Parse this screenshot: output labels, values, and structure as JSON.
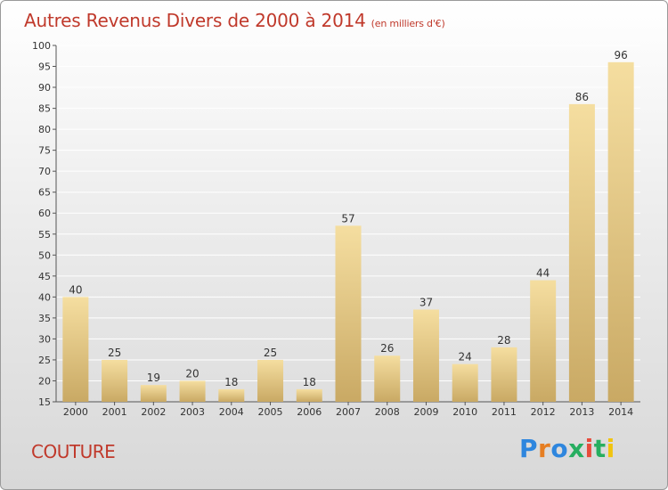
{
  "header": {
    "title": "Autres Revenus Divers de 2000 à 2014",
    "unit": "(en milliers d'€)"
  },
  "footer": {
    "commune": "COUTURE",
    "logo_letters": [
      "P",
      "r",
      "o",
      "x",
      "i",
      "t",
      "i"
    ],
    "logo_colors": [
      "#2e86de",
      "#e67e22",
      "#2e86de",
      "#27ae60",
      "#e74c3c",
      "#27ae60",
      "#f1c40f"
    ]
  },
  "colors": {
    "title": "#c0392b",
    "bar_light": "#f5dea0",
    "bar_dark": "#c9a964",
    "grid": "#ffffff",
    "axis": "#555555"
  },
  "chart_data": {
    "type": "bar",
    "title": "Autres Revenus Divers de 2000 à 2014",
    "ylabel": "",
    "xlabel": "",
    "categories": [
      "2000",
      "2001",
      "2002",
      "2003",
      "2004",
      "2005",
      "2006",
      "2007",
      "2008",
      "2009",
      "2010",
      "2011",
      "2012",
      "2013",
      "2014"
    ],
    "values": [
      40,
      25,
      19,
      20,
      18,
      25,
      18,
      57,
      26,
      37,
      24,
      28,
      44,
      86,
      96
    ],
    "ylim": [
      15,
      100
    ],
    "yticks": [
      15,
      20,
      25,
      30,
      35,
      40,
      45,
      50,
      55,
      60,
      65,
      70,
      75,
      80,
      85,
      90,
      95,
      100
    ],
    "grid": true,
    "data_labels": true
  }
}
